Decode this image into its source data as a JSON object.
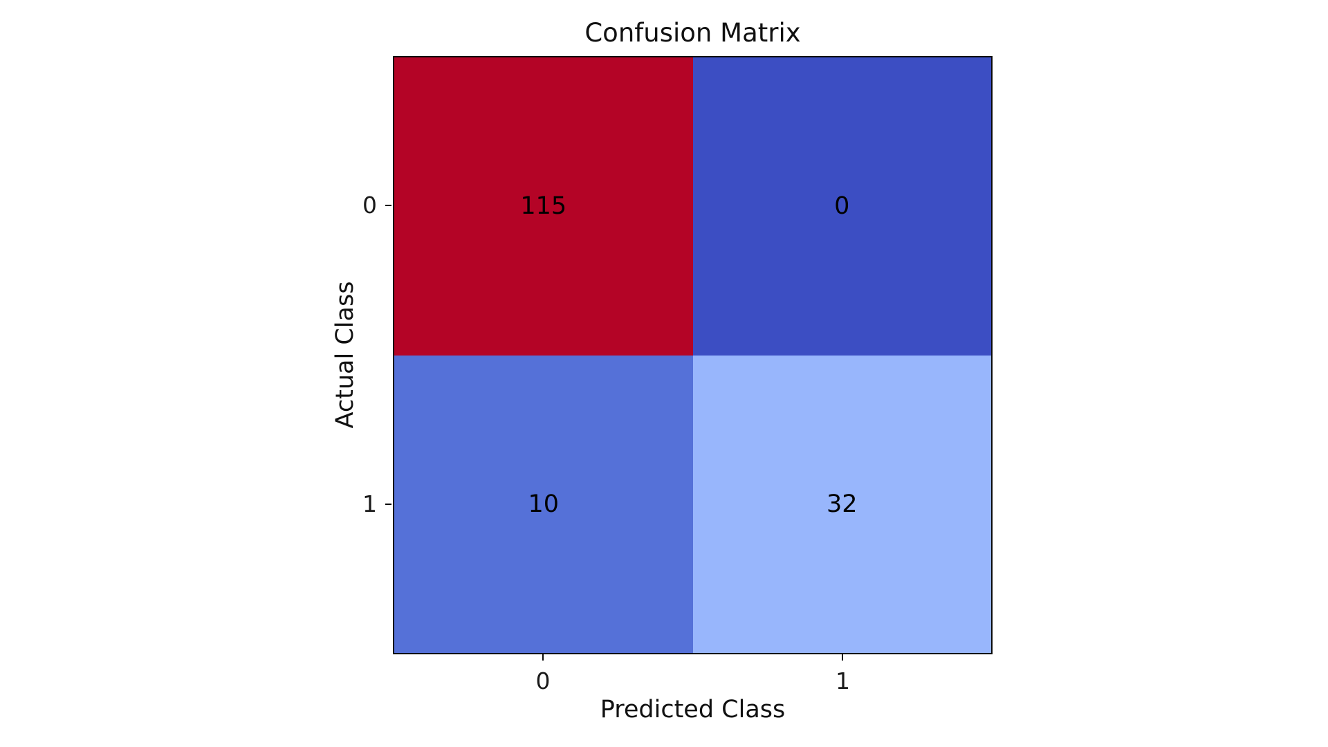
{
  "chart_data": {
    "type": "heatmap",
    "title": "Confusion Matrix",
    "xlabel": "Predicted Class",
    "ylabel": "Actual Class",
    "x_ticklabels": [
      "0",
      "1"
    ],
    "y_ticklabels": [
      "0",
      "1"
    ],
    "matrix": [
      [
        115,
        0
      ],
      [
        10,
        32
      ]
    ],
    "cell_colors": [
      [
        "#b40426",
        "#3c4ec3"
      ],
      [
        "#5571d8",
        "#98b6fc"
      ]
    ],
    "colormap": "coolwarm",
    "value_range": [
      0,
      115
    ],
    "grid": false,
    "legend": "none",
    "background_color": "#ffffff",
    "text_color": "#000000"
  }
}
